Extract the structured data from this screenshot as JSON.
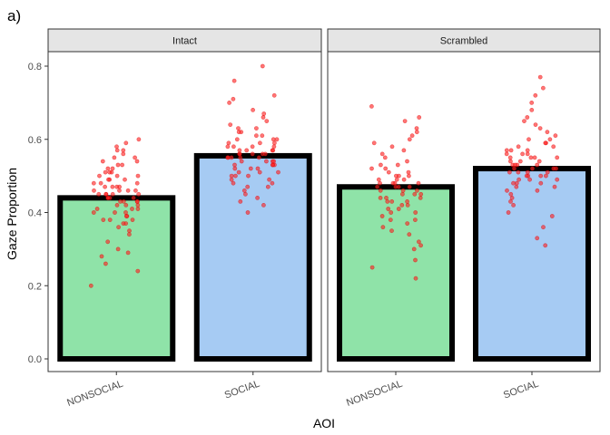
{
  "figure_label": "a)",
  "colors": {
    "nonsocial_fill": "#8fe3a8",
    "social_fill": "#a6cbf3",
    "bar_outline": "#000000",
    "points": "#ff2020",
    "strip_bg": "#e5e5e5"
  },
  "chart_data": {
    "type": "bar",
    "xlabel": "AOI",
    "ylabel": "Gaze Proportion",
    "ylim": [
      0,
      0.82
    ],
    "yticks": [
      "0.0",
      "0.2",
      "0.4",
      "0.6",
      "0.8"
    ],
    "grid": false,
    "categories": [
      "NONSOCIAL",
      "SOCIAL"
    ],
    "panels": [
      {
        "name": "Intact",
        "values": [
          0.44,
          0.555
        ],
        "points": [
          [
            0.2,
            0.24,
            0.26,
            0.28,
            0.29,
            0.3,
            0.32,
            0.34,
            0.35,
            0.36,
            0.37,
            0.37,
            0.38,
            0.38,
            0.38,
            0.39,
            0.39,
            0.4,
            0.4,
            0.4,
            0.41,
            0.41,
            0.41,
            0.42,
            0.42,
            0.42,
            0.43,
            0.43,
            0.43,
            0.43,
            0.44,
            0.44,
            0.44,
            0.44,
            0.45,
            0.45,
            0.45,
            0.45,
            0.45,
            0.46,
            0.46,
            0.46,
            0.46,
            0.47,
            0.47,
            0.47,
            0.47,
            0.48,
            0.48,
            0.48,
            0.49,
            0.49,
            0.49,
            0.5,
            0.5,
            0.5,
            0.51,
            0.51,
            0.51,
            0.52,
            0.52,
            0.53,
            0.53,
            0.54,
            0.54,
            0.55,
            0.55,
            0.56,
            0.57,
            0.57,
            0.58,
            0.59,
            0.6
          ],
          [
            0.4,
            0.42,
            0.43,
            0.44,
            0.45,
            0.46,
            0.47,
            0.47,
            0.48,
            0.48,
            0.49,
            0.49,
            0.5,
            0.5,
            0.5,
            0.51,
            0.51,
            0.51,
            0.52,
            0.52,
            0.52,
            0.53,
            0.53,
            0.53,
            0.53,
            0.54,
            0.54,
            0.54,
            0.54,
            0.55,
            0.55,
            0.55,
            0.55,
            0.55,
            0.56,
            0.56,
            0.56,
            0.56,
            0.56,
            0.57,
            0.57,
            0.57,
            0.57,
            0.58,
            0.58,
            0.58,
            0.58,
            0.59,
            0.59,
            0.59,
            0.6,
            0.6,
            0.6,
            0.61,
            0.61,
            0.62,
            0.62,
            0.63,
            0.63,
            0.64,
            0.65,
            0.66,
            0.67,
            0.68,
            0.7,
            0.71,
            0.72,
            0.76,
            0.8
          ]
        ]
      },
      {
        "name": "Scrambled",
        "values": [
          0.47,
          0.52
        ],
        "points": [
          [
            0.22,
            0.25,
            0.27,
            0.3,
            0.31,
            0.32,
            0.34,
            0.35,
            0.36,
            0.37,
            0.38,
            0.38,
            0.39,
            0.4,
            0.4,
            0.41,
            0.41,
            0.42,
            0.42,
            0.43,
            0.43,
            0.43,
            0.44,
            0.44,
            0.44,
            0.45,
            0.45,
            0.45,
            0.46,
            0.46,
            0.46,
            0.47,
            0.47,
            0.47,
            0.47,
            0.48,
            0.48,
            0.48,
            0.48,
            0.49,
            0.49,
            0.49,
            0.5,
            0.5,
            0.5,
            0.51,
            0.51,
            0.52,
            0.52,
            0.53,
            0.53,
            0.54,
            0.55,
            0.56,
            0.57,
            0.58,
            0.59,
            0.6,
            0.61,
            0.62,
            0.63,
            0.65,
            0.66,
            0.69
          ],
          [
            0.31,
            0.33,
            0.36,
            0.39,
            0.4,
            0.42,
            0.43,
            0.44,
            0.45,
            0.46,
            0.46,
            0.47,
            0.47,
            0.48,
            0.48,
            0.48,
            0.49,
            0.49,
            0.49,
            0.5,
            0.5,
            0.5,
            0.5,
            0.51,
            0.51,
            0.51,
            0.51,
            0.52,
            0.52,
            0.52,
            0.52,
            0.53,
            0.53,
            0.53,
            0.53,
            0.54,
            0.54,
            0.54,
            0.55,
            0.55,
            0.55,
            0.55,
            0.56,
            0.56,
            0.56,
            0.57,
            0.57,
            0.57,
            0.58,
            0.58,
            0.59,
            0.59,
            0.6,
            0.6,
            0.61,
            0.62,
            0.63,
            0.64,
            0.65,
            0.66,
            0.68,
            0.7,
            0.72,
            0.74,
            0.77
          ]
        ]
      }
    ]
  }
}
